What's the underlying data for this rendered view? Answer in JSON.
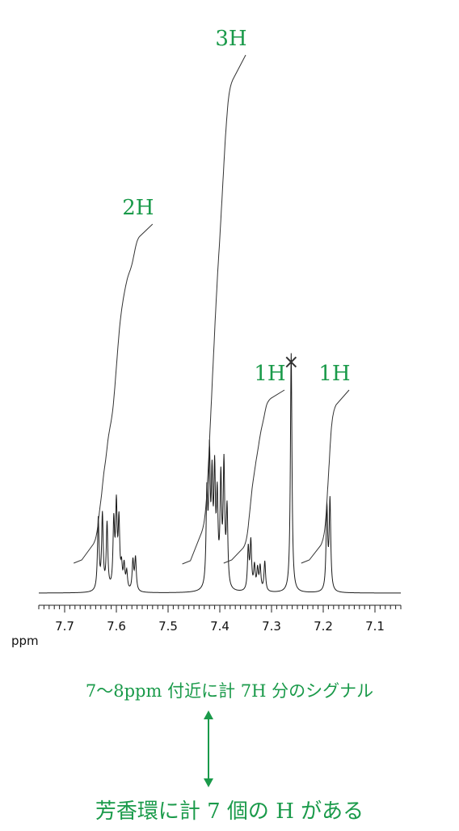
{
  "chart_data": {
    "type": "line",
    "xlabel": "ppm",
    "xlim": [
      7.75,
      7.05
    ],
    "x_ticks": [
      "7.7",
      "7.6",
      "7.5",
      "7.4",
      "7.3",
      "7.2",
      "7.1"
    ],
    "peaks": [
      {
        "ppm": 7.635,
        "h": 0.24
      },
      {
        "ppm": 7.627,
        "h": 0.25
      },
      {
        "ppm": 7.618,
        "h": 0.22
      },
      {
        "ppm": 7.605,
        "h": 0.22
      },
      {
        "ppm": 7.6,
        "h": 0.27
      },
      {
        "ppm": 7.595,
        "h": 0.22
      },
      {
        "ppm": 7.59,
        "h": 0.07
      },
      {
        "ppm": 7.585,
        "h": 0.08
      },
      {
        "ppm": 7.58,
        "h": 0.06
      },
      {
        "ppm": 7.568,
        "h": 0.1
      },
      {
        "ppm": 7.563,
        "h": 0.11
      },
      {
        "ppm": 7.425,
        "h": 0.3
      },
      {
        "ppm": 7.42,
        "h": 0.42
      },
      {
        "ppm": 7.415,
        "h": 0.33
      },
      {
        "ppm": 7.41,
        "h": 0.36
      },
      {
        "ppm": 7.405,
        "h": 0.28
      },
      {
        "ppm": 7.398,
        "h": 0.35
      },
      {
        "ppm": 7.392,
        "h": 0.4
      },
      {
        "ppm": 7.386,
        "h": 0.26
      },
      {
        "ppm": 7.345,
        "h": 0.14
      },
      {
        "ppm": 7.34,
        "h": 0.16
      },
      {
        "ppm": 7.333,
        "h": 0.08
      },
      {
        "ppm": 7.327,
        "h": 0.07
      },
      {
        "ppm": 7.322,
        "h": 0.08
      },
      {
        "ppm": 7.313,
        "h": 0.1
      },
      {
        "ppm": 7.262,
        "h": 0.8
      },
      {
        "ppm": 7.193,
        "h": 0.28
      },
      {
        "ppm": 7.187,
        "h": 0.3
      }
    ],
    "integrals": [
      {
        "label": "2H",
        "from": 7.645,
        "to": 7.555
      },
      {
        "label": "3H",
        "from": 7.435,
        "to": 7.375
      },
      {
        "label": "1H",
        "from": 7.355,
        "to": 7.3
      },
      {
        "label": "1H",
        "from": 7.205,
        "to": 7.175
      }
    ],
    "impurity_marker": {
      "label": "×",
      "ppm": 7.262
    }
  },
  "annotations": {
    "note1": "7〜8ppm 付近に計 7H 分のシグナル",
    "note2": "芳香環に計 7 個の H がある"
  }
}
